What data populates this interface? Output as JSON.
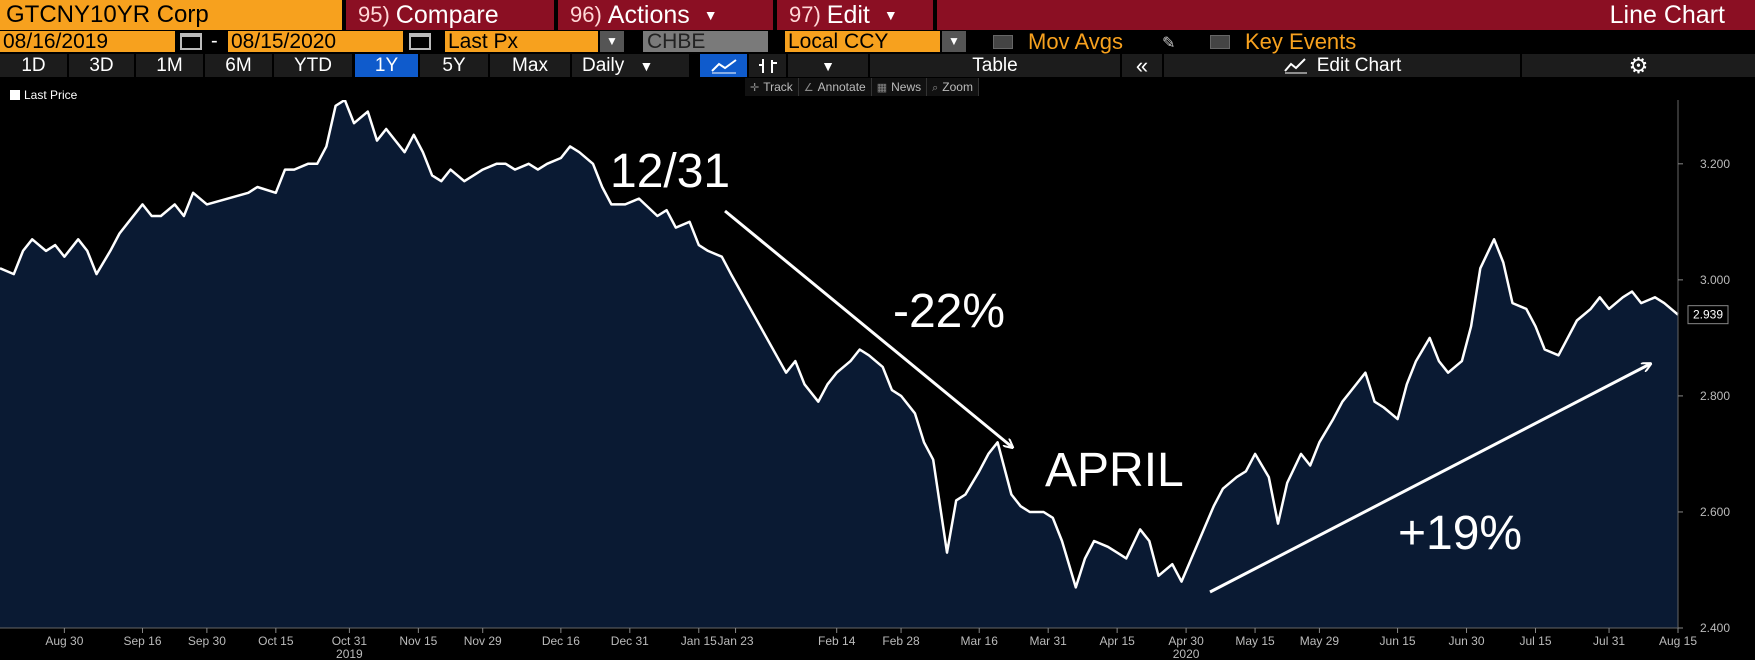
{
  "toolbar": {
    "ticker": "GTCNY10YR Corp",
    "compare": {
      "num": "95)",
      "label": "Compare"
    },
    "actions": {
      "num": "96)",
      "label": "Actions"
    },
    "edit": {
      "num": "97)",
      "label": "Edit"
    },
    "chart_type": "Line Chart"
  },
  "controls": {
    "start_date": "08/16/2019",
    "end_date": "08/15/2020",
    "date_dash": "-",
    "field": "Last Px",
    "source": "CHBE",
    "currency": "Local CCY",
    "mov_avgs": "Mov Avgs",
    "key_events": "Key Events"
  },
  "periods": [
    "1D",
    "3D",
    "1M",
    "6M",
    "YTD",
    "1Y",
    "5Y",
    "Max"
  ],
  "active_period": "1Y",
  "frequency": "Daily",
  "table_label": "Table",
  "edit_chart_label": "Edit Chart",
  "subtools": [
    "Track",
    "Annotate",
    "News",
    "Zoom"
  ],
  "annotations": {
    "a1": "12/31",
    "a2": "-22%",
    "a3": "APRIL",
    "a4": "+19%"
  },
  "colors": {
    "line": "#ffffff",
    "fill": "#0a1a33",
    "background": "#000000",
    "accent": "#f7a11e",
    "menu": "#8b0f23",
    "active": "#0f5bcc"
  },
  "chart_data": {
    "type": "area",
    "legend": [
      "Last Price"
    ],
    "last_value_label": "2.939",
    "x_tick_labels": [
      "Aug 30",
      "Sep 16",
      "Sep 30",
      "Oct 15",
      "Oct 31",
      "Nov 15",
      "Nov 29",
      "Dec 16",
      "Dec 31",
      "Jan 15",
      "Jan 23",
      "Feb 14",
      "Feb 28",
      "Mar 16",
      "Mar 31",
      "Apr 15",
      "Apr 30",
      "May 15",
      "May 29",
      "Jun 15",
      "Jun 30",
      "Jul 15",
      "Jul 31",
      "Aug 15"
    ],
    "year_labels": [
      "2019",
      "2020"
    ],
    "y_ticks": [
      "3.200",
      "3.000",
      "2.800",
      "2.600",
      "2.400"
    ],
    "ylim": [
      2.4,
      3.31
    ],
    "series": [
      {
        "name": "Last Price",
        "points": [
          [
            "2019-08-16",
            3.02
          ],
          [
            "2019-08-19",
            3.01
          ],
          [
            "2019-08-21",
            3.05
          ],
          [
            "2019-08-23",
            3.07
          ],
          [
            "2019-08-26",
            3.05
          ],
          [
            "2019-08-28",
            3.06
          ],
          [
            "2019-08-30",
            3.04
          ],
          [
            "2019-09-02",
            3.07
          ],
          [
            "2019-09-04",
            3.05
          ],
          [
            "2019-09-06",
            3.01
          ],
          [
            "2019-09-09",
            3.05
          ],
          [
            "2019-09-11",
            3.08
          ],
          [
            "2019-09-13",
            3.1
          ],
          [
            "2019-09-16",
            3.13
          ],
          [
            "2019-09-18",
            3.11
          ],
          [
            "2019-09-20",
            3.11
          ],
          [
            "2019-09-23",
            3.13
          ],
          [
            "2019-09-25",
            3.11
          ],
          [
            "2019-09-27",
            3.15
          ],
          [
            "2019-09-30",
            3.13
          ],
          [
            "2019-10-09",
            3.15
          ],
          [
            "2019-10-11",
            3.16
          ],
          [
            "2019-10-15",
            3.15
          ],
          [
            "2019-10-17",
            3.19
          ],
          [
            "2019-10-19",
            3.19
          ],
          [
            "2019-10-22",
            3.2
          ],
          [
            "2019-10-24",
            3.2
          ],
          [
            "2019-10-26",
            3.23
          ],
          [
            "2019-10-28",
            3.3
          ],
          [
            "2019-10-30",
            3.31
          ],
          [
            "2019-11-01",
            3.27
          ],
          [
            "2019-11-04",
            3.29
          ],
          [
            "2019-11-06",
            3.24
          ],
          [
            "2019-11-08",
            3.26
          ],
          [
            "2019-11-10",
            3.24
          ],
          [
            "2019-11-12",
            3.22
          ],
          [
            "2019-11-14",
            3.25
          ],
          [
            "2019-11-16",
            3.22
          ],
          [
            "2019-11-18",
            3.18
          ],
          [
            "2019-11-20",
            3.17
          ],
          [
            "2019-11-22",
            3.19
          ],
          [
            "2019-11-25",
            3.17
          ],
          [
            "2019-11-27",
            3.18
          ],
          [
            "2019-11-29",
            3.19
          ],
          [
            "2019-12-02",
            3.2
          ],
          [
            "2019-12-04",
            3.2
          ],
          [
            "2019-12-06",
            3.19
          ],
          [
            "2019-12-09",
            3.2
          ],
          [
            "2019-12-11",
            3.19
          ],
          [
            "2019-12-13",
            3.2
          ],
          [
            "2019-12-16",
            3.21
          ],
          [
            "2019-12-18",
            3.23
          ],
          [
            "2019-12-20",
            3.22
          ],
          [
            "2019-12-23",
            3.2
          ],
          [
            "2019-12-25",
            3.16
          ],
          [
            "2019-12-27",
            3.13
          ],
          [
            "2019-12-30",
            3.13
          ],
          [
            "2020-01-02",
            3.14
          ],
          [
            "2020-01-06",
            3.11
          ],
          [
            "2020-01-08",
            3.12
          ],
          [
            "2020-01-10",
            3.09
          ],
          [
            "2020-01-13",
            3.1
          ],
          [
            "2020-01-15",
            3.06
          ],
          [
            "2020-01-17",
            3.05
          ],
          [
            "2020-01-20",
            3.04
          ],
          [
            "2020-01-22",
            3.01
          ],
          [
            "2020-02-03",
            2.84
          ],
          [
            "2020-02-05",
            2.86
          ],
          [
            "2020-02-07",
            2.82
          ],
          [
            "2020-02-10",
            2.79
          ],
          [
            "2020-02-12",
            2.82
          ],
          [
            "2020-02-14",
            2.84
          ],
          [
            "2020-02-17",
            2.86
          ],
          [
            "2020-02-19",
            2.88
          ],
          [
            "2020-02-21",
            2.87
          ],
          [
            "2020-02-24",
            2.85
          ],
          [
            "2020-02-26",
            2.81
          ],
          [
            "2020-02-28",
            2.8
          ],
          [
            "2020-03-02",
            2.77
          ],
          [
            "2020-03-04",
            2.72
          ],
          [
            "2020-03-06",
            2.69
          ],
          [
            "2020-03-09",
            2.53
          ],
          [
            "2020-03-11",
            2.62
          ],
          [
            "2020-03-13",
            2.63
          ],
          [
            "2020-03-16",
            2.67
          ],
          [
            "2020-03-18",
            2.7
          ],
          [
            "2020-03-20",
            2.72
          ],
          [
            "2020-03-23",
            2.63
          ],
          [
            "2020-03-25",
            2.61
          ],
          [
            "2020-03-27",
            2.6
          ],
          [
            "2020-03-30",
            2.6
          ],
          [
            "2020-04-01",
            2.59
          ],
          [
            "2020-04-03",
            2.55
          ],
          [
            "2020-04-06",
            2.47
          ],
          [
            "2020-04-08",
            2.52
          ],
          [
            "2020-04-10",
            2.55
          ],
          [
            "2020-04-13",
            2.54
          ],
          [
            "2020-04-15",
            2.53
          ],
          [
            "2020-04-17",
            2.52
          ],
          [
            "2020-04-20",
            2.57
          ],
          [
            "2020-04-22",
            2.55
          ],
          [
            "2020-04-24",
            2.49
          ],
          [
            "2020-04-27",
            2.51
          ],
          [
            "2020-04-29",
            2.48
          ],
          [
            "2020-05-06",
            2.61
          ],
          [
            "2020-05-08",
            2.64
          ],
          [
            "2020-05-11",
            2.66
          ],
          [
            "2020-05-13",
            2.67
          ],
          [
            "2020-05-15",
            2.7
          ],
          [
            "2020-05-18",
            2.66
          ],
          [
            "2020-05-20",
            2.58
          ],
          [
            "2020-05-22",
            2.65
          ],
          [
            "2020-05-25",
            2.7
          ],
          [
            "2020-05-27",
            2.68
          ],
          [
            "2020-05-29",
            2.72
          ],
          [
            "2020-06-01",
            2.76
          ],
          [
            "2020-06-03",
            2.79
          ],
          [
            "2020-06-05",
            2.81
          ],
          [
            "2020-06-08",
            2.84
          ],
          [
            "2020-06-10",
            2.79
          ],
          [
            "2020-06-12",
            2.78
          ],
          [
            "2020-06-15",
            2.76
          ],
          [
            "2020-06-17",
            2.82
          ],
          [
            "2020-06-19",
            2.86
          ],
          [
            "2020-06-22",
            2.9
          ],
          [
            "2020-06-24",
            2.86
          ],
          [
            "2020-06-26",
            2.84
          ],
          [
            "2020-06-29",
            2.86
          ],
          [
            "2020-07-01",
            2.92
          ],
          [
            "2020-07-03",
            3.02
          ],
          [
            "2020-07-06",
            3.07
          ],
          [
            "2020-07-08",
            3.03
          ],
          [
            "2020-07-10",
            2.96
          ],
          [
            "2020-07-13",
            2.95
          ],
          [
            "2020-07-15",
            2.92
          ],
          [
            "2020-07-17",
            2.88
          ],
          [
            "2020-07-20",
            2.87
          ],
          [
            "2020-07-22",
            2.9
          ],
          [
            "2020-07-24",
            2.93
          ],
          [
            "2020-07-27",
            2.95
          ],
          [
            "2020-07-29",
            2.97
          ],
          [
            "2020-07-31",
            2.95
          ],
          [
            "2020-08-03",
            2.97
          ],
          [
            "2020-08-05",
            2.98
          ],
          [
            "2020-08-07",
            2.96
          ],
          [
            "2020-08-10",
            2.97
          ],
          [
            "2020-08-12",
            2.96
          ],
          [
            "2020-08-15",
            2.94
          ]
        ]
      }
    ],
    "grid": false
  }
}
